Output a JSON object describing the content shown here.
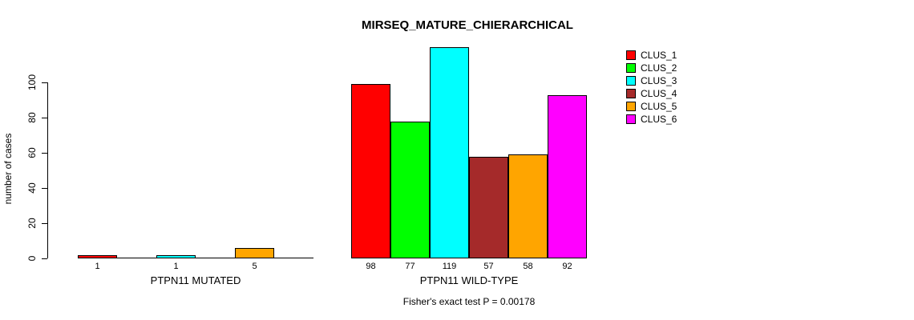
{
  "title": "MIRSEQ_MATURE_CHIERARCHICAL",
  "footer": "Fisher's exact test P = 0.00178",
  "legend": {
    "items": [
      {
        "label": "CLUS_1",
        "color": "#FF0000"
      },
      {
        "label": "CLUS_2",
        "color": "#00FF00"
      },
      {
        "label": "CLUS_3",
        "color": "#00FFFF"
      },
      {
        "label": "CLUS_4",
        "color": "#A52A2A"
      },
      {
        "label": "CLUS_5",
        "color": "#FFA500"
      },
      {
        "label": "CLUS_6",
        "color": "#FF00FF"
      }
    ]
  },
  "chart_data": {
    "type": "bar",
    "title": "MIRSEQ_MATURE_CHIERARCHICAL",
    "ylabel": "number of cases",
    "yticks": [
      0,
      20,
      40,
      60,
      80,
      100
    ],
    "ylim": [
      0,
      119
    ],
    "grid": false,
    "legend_position": "right",
    "series": [
      "CLUS_1",
      "CLUS_2",
      "CLUS_3",
      "CLUS_4",
      "CLUS_5",
      "CLUS_6"
    ],
    "series_colors": [
      "#FF0000",
      "#00FF00",
      "#00FFFF",
      "#A52A2A",
      "#FFA500",
      "#FF00FF"
    ],
    "groups": [
      {
        "label": "PTPN11 MUTATED",
        "values": [
          1,
          0,
          1,
          0,
          5,
          0
        ],
        "bar_labels": [
          "1",
          "",
          "1",
          "",
          "5",
          ""
        ]
      },
      {
        "label": "PTPN11 WILD-TYPE",
        "values": [
          98,
          77,
          119,
          57,
          58,
          92
        ],
        "bar_labels": [
          "98",
          "77",
          "119",
          "57",
          "58",
          "92"
        ]
      }
    ],
    "annotation": "Fisher's exact test P = 0.00178"
  }
}
